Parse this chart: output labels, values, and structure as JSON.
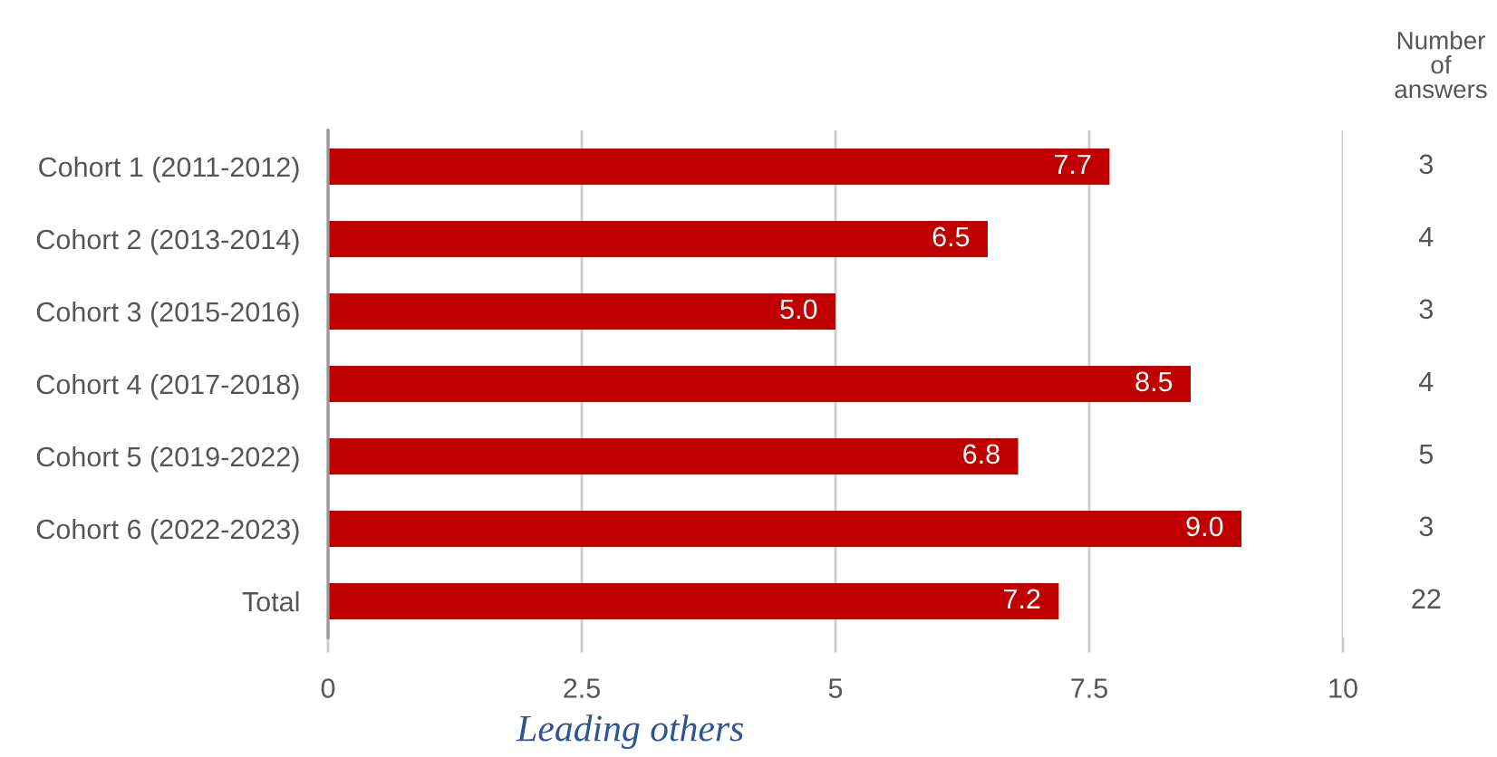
{
  "chart_data": {
    "type": "bar",
    "orientation": "horizontal",
    "categories": [
      "Cohort 1 (2011-2012)",
      "Cohort 2 (2013-2014)",
      "Cohort 3 (2015-2016)",
      "Cohort 4 (2017-2018)",
      "Cohort 5 (2019-2022)",
      "Cohort 6 (2022-2023)",
      "Total"
    ],
    "values": [
      7.7,
      6.5,
      5.0,
      8.5,
      6.8,
      9.0,
      7.2
    ],
    "value_labels": [
      "7.7",
      "6.5",
      "5.0",
      "8.5",
      "6.8",
      "9.0",
      "7.2"
    ],
    "color": "#c00000",
    "xlim": [
      0,
      10
    ],
    "xticks": [
      0,
      2.5,
      5,
      7.5,
      10
    ],
    "grid": "x",
    "xlabel": "Leading others",
    "y2label": "Number of answers",
    "y2_categories": [
      "3",
      "4",
      "3",
      "4",
      "5",
      "3",
      "22"
    ]
  }
}
